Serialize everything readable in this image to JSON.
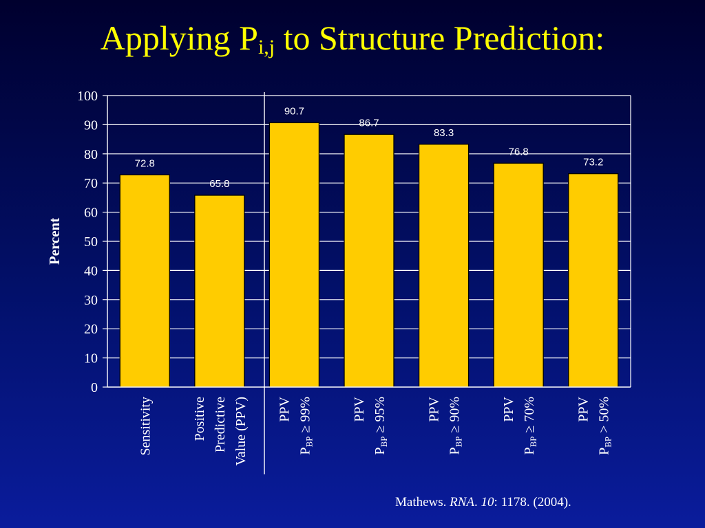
{
  "slide": {
    "title_main": "Applying P",
    "title_sub": "i,j",
    "title_rest": " to Structure Prediction:"
  },
  "citation": {
    "author": "Mathews. ",
    "journal": "RNA",
    "sep": ". ",
    "volume": "10",
    "rest": ": 1178. (2004)."
  },
  "colors": {
    "bar_fill": "#ffcc00",
    "text": "#ffffff",
    "title": "#ffff00"
  },
  "chart_data": {
    "type": "bar",
    "ylabel": "Percent",
    "ylim": [
      0,
      100
    ],
    "yticks": [
      0,
      10,
      20,
      30,
      40,
      50,
      60,
      70,
      80,
      90,
      100
    ],
    "grid": true,
    "categories": [
      {
        "lines": [
          "Sensitivity"
        ]
      },
      {
        "lines": [
          "Positive",
          "Predictive",
          "Value (PPV)"
        ]
      },
      {
        "lines": [
          "PPV",
          "P_BP ≥ 99%"
        ]
      },
      {
        "lines": [
          "PPV",
          "P_BP ≥ 95%"
        ]
      },
      {
        "lines": [
          "PPV",
          "P_BP ≥ 90%"
        ]
      },
      {
        "lines": [
          "PPV",
          "P_BP ≥ 70%"
        ]
      },
      {
        "lines": [
          "PPV",
          "P_BP > 50%"
        ]
      }
    ],
    "values": [
      72.8,
      65.8,
      90.7,
      86.7,
      83.3,
      76.8,
      73.2
    ],
    "value_labels": [
      "72.8",
      "65.8",
      "90.7",
      "86.7",
      "83.3",
      "76.8",
      "73.2"
    ]
  }
}
